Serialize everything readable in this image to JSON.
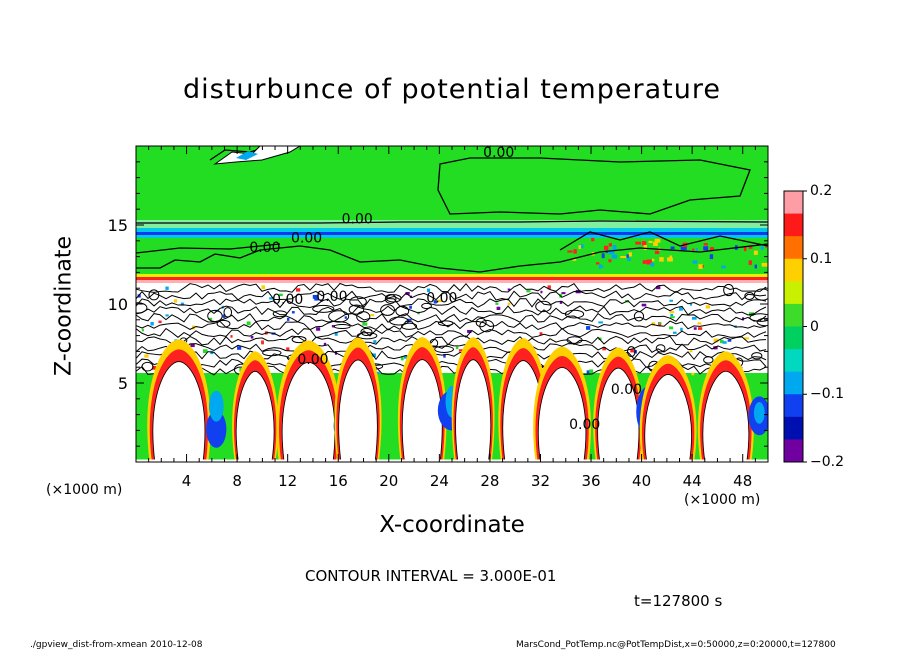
{
  "chart_data": {
    "type": "heatmap",
    "title": "disturbunce of potential temperature",
    "xlabel": "X-coordinate",
    "ylabel": "Z-coordinate",
    "x_unit": "(×1000 m)",
    "y_unit": "(×1000 m)",
    "xlim": [
      0,
      50
    ],
    "ylim": [
      0,
      20
    ],
    "x_ticks": [
      4,
      8,
      12,
      16,
      20,
      24,
      28,
      32,
      36,
      40,
      44,
      48
    ],
    "y_ticks": [
      5,
      10,
      15
    ],
    "colorbar": {
      "range": [
        -0.2,
        0.2
      ],
      "ticks": [
        {
          "value": 0.2,
          "label": "0.2"
        },
        {
          "value": 0.1,
          "label": "0.1"
        },
        {
          "value": 0,
          "label": "0"
        },
        {
          "value": -0.1,
          "label": "−0.1"
        },
        {
          "value": -0.2,
          "label": "−0.2"
        }
      ]
    },
    "contour_labels": [
      {
        "x": 28.7,
        "z": 19.3,
        "text": "0.00"
      },
      {
        "x": 17.5,
        "z": 15.1,
        "text": "0.00"
      },
      {
        "x": 13.5,
        "z": 13.9,
        "text": "0.00"
      },
      {
        "x": 10.2,
        "z": 13.3,
        "text": "0.00"
      },
      {
        "x": 12.0,
        "z": 10.0,
        "text": "0.00"
      },
      {
        "x": 15.5,
        "z": 10.2,
        "text": "0.00"
      },
      {
        "x": 24.2,
        "z": 10.1,
        "text": "0.00"
      },
      {
        "x": 38.8,
        "z": 4.3,
        "text": "0.00"
      },
      {
        "x": 35.5,
        "z": 2.1,
        "text": "0.00"
      },
      {
        "x": 14.0,
        "z": 6.2,
        "text": "0.00"
      }
    ],
    "contour_interval": "CONTOUR INTERVAL = 3.000E-01",
    "time_label": "t=127800 s"
  },
  "footer": {
    "left": "./gpview_dist-from-xmean  2010-12-08",
    "right": "MarsCond_PotTemp.nc@PotTempDist,x=0:50000,z=0:20000,t=127800"
  },
  "colors": {
    "background_green": "#22dd22",
    "band_cyan": "#00c8e8",
    "band_blue": "#1038f0",
    "band_red": "#ff2020",
    "band_pink": "#ffb0b0",
    "colorbar": [
      "#ff9da6",
      "#ff1a1a",
      "#ff7000",
      "#ffd000",
      "#c8f000",
      "#3ddc2a",
      "#00d060",
      "#00d8c0",
      "#00a8f0",
      "#1040f0",
      "#0010b0",
      "#7000a0"
    ]
  }
}
